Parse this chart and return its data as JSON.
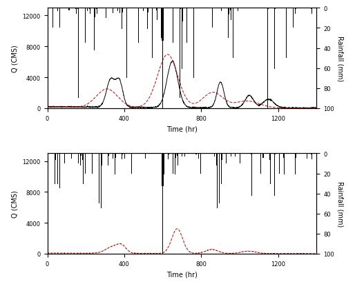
{
  "xlim": [
    0,
    1400
  ],
  "ylim_flow": [
    0,
    13000
  ],
  "ylim_rainfall_min": 100,
  "ylim_rainfall_max": 0,
  "xticks": [
    0,
    400,
    800,
    1200
  ],
  "yticks_flow": [
    0,
    4000,
    8000,
    12000
  ],
  "yticks_rainfall": [
    0,
    20,
    40,
    60,
    80,
    100
  ],
  "xlabel": "Time (hr)",
  "ylabel_flow": "Q (CMS)",
  "ylabel_rainfall": "Rainfall (mm)",
  "flow_color_obs": "#000000",
  "flow_color_sim": "#cc0000",
  "rainfall_color": "#000000",
  "background": "#ffffff",
  "fig_width": 5.27,
  "fig_height": 4.1,
  "dpi": 100
}
